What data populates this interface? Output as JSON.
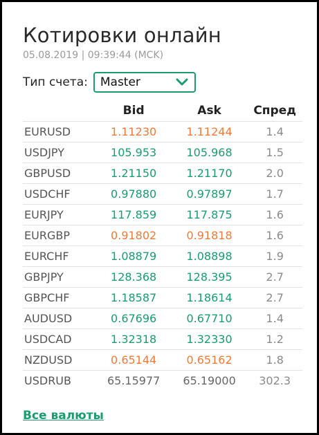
{
  "title": "Котировки онлайн",
  "timestamp": "05.08.2019 | 09:39:44 (MCK)",
  "account": {
    "label": "Тип счета:",
    "selected": "Master"
  },
  "columns": {
    "pair": "",
    "bid": "Bid",
    "ask": "Ask",
    "spread": "Спред"
  },
  "colors": {
    "up": "#1a9c6e",
    "down": "#f07a36",
    "neutral": "#666666"
  },
  "rows": [
    {
      "pair": "EURUSD",
      "bid": "1.11230",
      "ask": "1.11244",
      "spread": "1.4",
      "trend": "down"
    },
    {
      "pair": "USDJPY",
      "bid": "105.953",
      "ask": "105.968",
      "spread": "1.5",
      "trend": "up"
    },
    {
      "pair": "GBPUSD",
      "bid": "1.21150",
      "ask": "1.21170",
      "spread": "2.0",
      "trend": "up"
    },
    {
      "pair": "USDCHF",
      "bid": "0.97880",
      "ask": "0.97897",
      "spread": "1.7",
      "trend": "up"
    },
    {
      "pair": "EURJPY",
      "bid": "117.859",
      "ask": "117.875",
      "spread": "1.6",
      "trend": "up"
    },
    {
      "pair": "EURGBP",
      "bid": "0.91802",
      "ask": "0.91818",
      "spread": "1.6",
      "trend": "down"
    },
    {
      "pair": "EURCHF",
      "bid": "1.08879",
      "ask": "1.08898",
      "spread": "1.9",
      "trend": "up"
    },
    {
      "pair": "GBPJPY",
      "bid": "128.368",
      "ask": "128.395",
      "spread": "2.7",
      "trend": "up"
    },
    {
      "pair": "GBPCHF",
      "bid": "1.18587",
      "ask": "1.18614",
      "spread": "2.7",
      "trend": "up"
    },
    {
      "pair": "AUDUSD",
      "bid": "0.67696",
      "ask": "0.67710",
      "spread": "1.4",
      "trend": "up"
    },
    {
      "pair": "USDCAD",
      "bid": "1.32318",
      "ask": "1.32330",
      "spread": "1.2",
      "trend": "up"
    },
    {
      "pair": "NZDUSD",
      "bid": "0.65144",
      "ask": "0.65162",
      "spread": "1.8",
      "trend": "down"
    },
    {
      "pair": "USDRUB",
      "bid": "65.15977",
      "ask": "65.19000",
      "spread": "302.3",
      "trend": "neutral"
    }
  ],
  "footer": {
    "all_currencies": "Все валюты"
  },
  "icons": {
    "dropdown": "chevron-down-icon"
  }
}
